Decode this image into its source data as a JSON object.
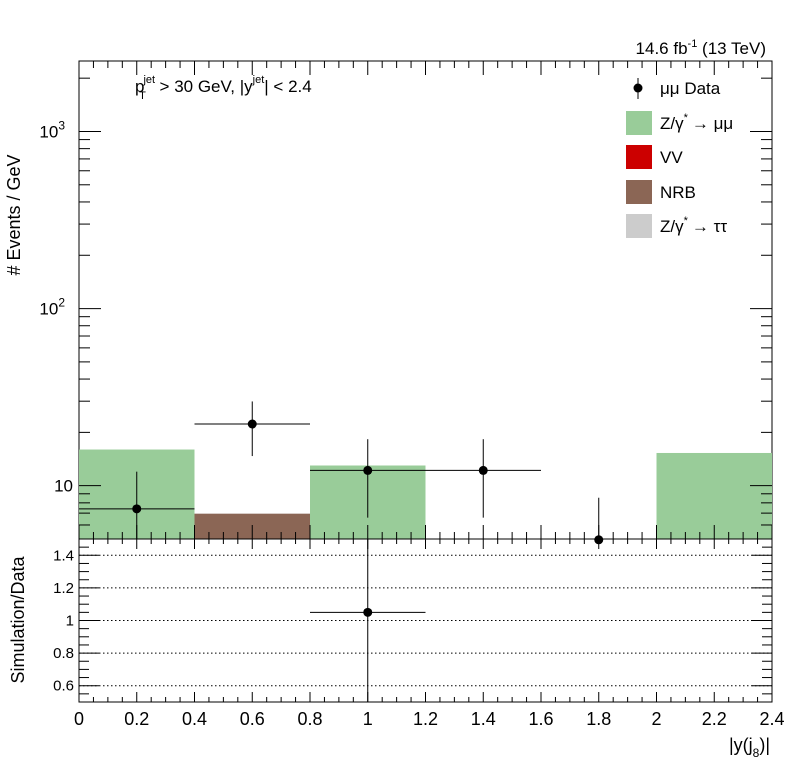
{
  "header": {
    "lumi_text": "14.6 fb",
    "lumi_exp": "-1",
    "energy_text": "(13 TeV)"
  },
  "cut_label": {
    "p": "p",
    "p_sub": "T",
    "p_sup": "jet",
    "mid": " > 30 GeV,  |y",
    "y_sup": "jet",
    "tail": "| < 2.4"
  },
  "legend": {
    "data": "μμ Data",
    "zmm_a": "Z/γ",
    "zmm_b": "→ μμ",
    "vv": "VV",
    "nrb": "NRB",
    "ztt_a": "Z/γ",
    "ztt_b": "→ ττ",
    "star": "*"
  },
  "colors": {
    "zmm": "#99cc99",
    "vv": "#cc0000",
    "nrb": "#8b6655",
    "ztt": "#cccccc",
    "data": "#000000"
  },
  "chart_data": [
    {
      "type": "bar",
      "stacked": true,
      "log_y": true,
      "ylabel": "# Events / GeV",
      "xlim": [
        0,
        2.4
      ],
      "ylim": [
        5,
        2500
      ],
      "y_ticks": [
        {
          "value": 10,
          "label": "10",
          "exp": ""
        },
        {
          "value": 100,
          "label": "10",
          "exp": "2"
        },
        {
          "value": 1000,
          "label": "10",
          "exp": "3"
        }
      ],
      "bin_edges": [
        0,
        0.4,
        0.8,
        1.2,
        1.6,
        2.0,
        2.4
      ],
      "series": [
        {
          "name": "Z/γ* → μμ",
          "key": "zmm",
          "values": [
            16.0,
            0,
            13.0,
            0,
            0,
            15.3
          ]
        },
        {
          "name": "VV",
          "key": "vv",
          "values": [
            0,
            0.45,
            0,
            0,
            0,
            0
          ]
        },
        {
          "name": "NRB",
          "key": "nrb",
          "values": [
            0,
            6.5,
            0,
            0,
            0,
            0
          ]
        },
        {
          "name": "Z/γ* → ττ",
          "key": "ztt",
          "values": [
            0,
            0,
            0,
            0,
            0,
            0
          ]
        }
      ],
      "data_points": {
        "name": "μμ Data",
        "x": [
          0.2,
          0.6,
          1.0,
          1.4,
          1.8
        ],
        "x_err": [
          0.2,
          0.2,
          0.2,
          0.2,
          0.0
        ],
        "y": [
          7.4,
          22.3,
          12.2,
          12.2,
          4.95
        ],
        "y_err_low": [
          2.7,
          7.6,
          5.6,
          5.6,
          0.0
        ],
        "y_err_high": [
          4.6,
          7.6,
          6.1,
          6.1,
          3.6
        ]
      }
    },
    {
      "type": "scatter",
      "xlabel": "|y(j",
      "xlabel_sub": "8",
      "xlabel_tail": ")|",
      "ylabel": "Simulation/Data",
      "xlim": [
        0,
        2.4
      ],
      "ylim": [
        0.5,
        1.5
      ],
      "x_tick_labels": [
        "0",
        "0.2",
        "0.4",
        "0.6",
        "0.8",
        "1",
        "1.2",
        "1.4",
        "1.6",
        "1.8",
        "2",
        "2.2",
        "2.4"
      ],
      "y_tick_labels": [
        "0.6",
        "0.8",
        "1",
        "1.2",
        "1.4"
      ],
      "grid_y": [
        0.6,
        0.8,
        1.0,
        1.2,
        1.4
      ],
      "points": {
        "x": [
          1.0
        ],
        "y": [
          1.05
        ],
        "x_err": [
          0.2
        ],
        "y_err": [
          0.6
        ]
      }
    }
  ]
}
